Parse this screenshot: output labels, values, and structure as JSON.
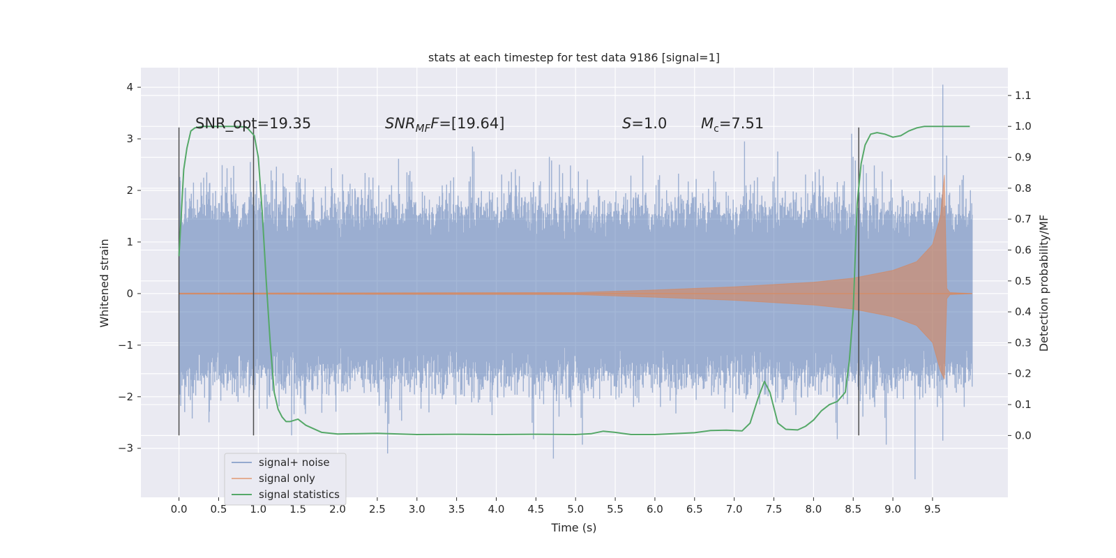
{
  "chart_data": {
    "type": "line",
    "title": "stats at each timestep for test data 9186 [signal=1]",
    "xlabel": "Time (s)",
    "ylabel": "Whitened strain",
    "ylabel_right": "Detection probability/MF",
    "xlim": [
      -0.48,
      10.45
    ],
    "ylim": [
      -3.95,
      4.38
    ],
    "ylim_right": [
      -0.2,
      1.19
    ],
    "xticks": [
      0.0,
      0.5,
      1.0,
      1.5,
      2.0,
      2.5,
      3.0,
      3.5,
      4.0,
      4.5,
      5.0,
      5.5,
      6.0,
      6.5,
      7.0,
      7.5,
      8.0,
      8.5,
      9.0,
      9.5
    ],
    "xtick_labels": [
      "0.0",
      "0.5",
      "1.0",
      "1.5",
      "2.0",
      "2.5",
      "3.0",
      "3.5",
      "4.0",
      "4.5",
      "5.0",
      "5.5",
      "6.0",
      "6.5",
      "7.0",
      "7.5",
      "8.0",
      "8.5",
      "9.0",
      "9.5"
    ],
    "yticks": [
      4,
      3,
      2,
      1,
      0,
      -1,
      -2,
      -3
    ],
    "ytick_labels": [
      "4",
      "3",
      "2",
      "1",
      "0",
      "−1",
      "−2",
      "−3"
    ],
    "yticks_right": [
      1.1,
      1.0,
      0.9,
      0.8,
      0.7,
      0.6,
      0.5,
      0.4,
      0.3,
      0.2,
      0.1,
      0.0
    ],
    "ytick_labels_right": [
      "1.1",
      "1.0",
      "0.9",
      "0.8",
      "0.7",
      "0.6",
      "0.5",
      "0.4",
      "0.3",
      "0.2",
      "0.1",
      "0.0"
    ],
    "grid": true,
    "legend": {
      "placement": "lower-left",
      "entries": [
        "signal+ noise",
        "signal only",
        "signal statistics"
      ]
    },
    "annotations": {
      "snr_opt": "SNR_opt=19.35",
      "snr_mf_main": "SNR",
      "snr_mf_sub": "MF",
      "snr_mf_rest": "=[19.64]",
      "s_main": "S",
      "s_rest": "=1.0",
      "mc_main": "M",
      "mc_sub": "c",
      "mc_rest": "=7.51"
    },
    "vertical_markers": [
      {
        "x": 0.0,
        "y_top": 3.22,
        "y_bottom": -2.75
      },
      {
        "x": 0.94,
        "y_top": 3.22,
        "y_bottom": -2.75
      },
      {
        "x": 8.57,
        "y_top": 3.22,
        "y_bottom": -2.75
      }
    ],
    "series": [
      {
        "name": "signal+ noise",
        "color": "#4c72b0",
        "x_range": [
          0.0,
          10.0
        ],
        "envelope_typical": 1.3,
        "spikes": [
          [
            0.35,
            2.35
          ],
          [
            0.9,
            2.55
          ],
          [
            1.42,
            -2.75
          ],
          [
            2.63,
            -3.1
          ],
          [
            2.68,
            2.1
          ],
          [
            3.7,
            2.85
          ],
          [
            4.72,
            -3.2
          ],
          [
            7.13,
            2.95
          ],
          [
            8.48,
            3.1
          ],
          [
            9.28,
            -3.6
          ],
          [
            9.63,
            4.05
          ],
          [
            9.63,
            -2.85
          ]
        ]
      },
      {
        "name": "signal only",
        "color": "#dd8452",
        "chirp_points": [
          [
            0.0,
            0.01
          ],
          [
            5.0,
            0.02
          ],
          [
            6.0,
            0.07
          ],
          [
            7.0,
            0.13
          ],
          [
            8.0,
            0.22
          ],
          [
            8.5,
            0.3
          ],
          [
            9.0,
            0.45
          ],
          [
            9.3,
            0.62
          ],
          [
            9.5,
            0.95
          ],
          [
            9.6,
            1.5
          ],
          [
            9.65,
            2.3
          ],
          [
            9.68,
            0.1
          ],
          [
            9.72,
            0.02
          ],
          [
            10.0,
            0.0
          ]
        ]
      },
      {
        "name": "signal statistics",
        "color": "#55a868",
        "axis": "right",
        "x": [
          0.0,
          0.06,
          0.1,
          0.15,
          0.2,
          0.3,
          0.5,
          0.7,
          0.85,
          0.95,
          1.0,
          1.05,
          1.1,
          1.15,
          1.2,
          1.25,
          1.3,
          1.35,
          1.4,
          1.5,
          1.6,
          1.8,
          2.0,
          2.5,
          3.0,
          3.5,
          4.0,
          4.5,
          5.0,
          5.2,
          5.35,
          5.5,
          5.7,
          6.0,
          6.5,
          6.7,
          6.9,
          7.1,
          7.2,
          7.3,
          7.38,
          7.45,
          7.55,
          7.65,
          7.8,
          7.9,
          8.0,
          8.1,
          8.2,
          8.3,
          8.4,
          8.45,
          8.5,
          8.55,
          8.6,
          8.65,
          8.72,
          8.8,
          8.9,
          9.0,
          9.1,
          9.2,
          9.3,
          9.4,
          9.5,
          9.6,
          9.8,
          9.97
        ],
        "y": [
          0.58,
          0.86,
          0.93,
          0.985,
          0.995,
          1.0,
          1.0,
          1.0,
          0.998,
          0.97,
          0.9,
          0.72,
          0.5,
          0.3,
          0.14,
          0.085,
          0.06,
          0.045,
          0.045,
          0.053,
          0.033,
          0.01,
          0.005,
          0.007,
          0.003,
          0.004,
          0.003,
          0.004,
          0.003,
          0.006,
          0.014,
          0.01,
          0.003,
          0.003,
          0.009,
          0.016,
          0.017,
          0.015,
          0.04,
          0.12,
          0.175,
          0.14,
          0.04,
          0.02,
          0.018,
          0.03,
          0.05,
          0.08,
          0.1,
          0.11,
          0.14,
          0.24,
          0.4,
          0.75,
          0.88,
          0.94,
          0.975,
          0.98,
          0.975,
          0.965,
          0.97,
          0.985,
          0.995,
          1.0,
          1.0,
          1.0,
          1.0,
          1.0
        ]
      }
    ]
  }
}
